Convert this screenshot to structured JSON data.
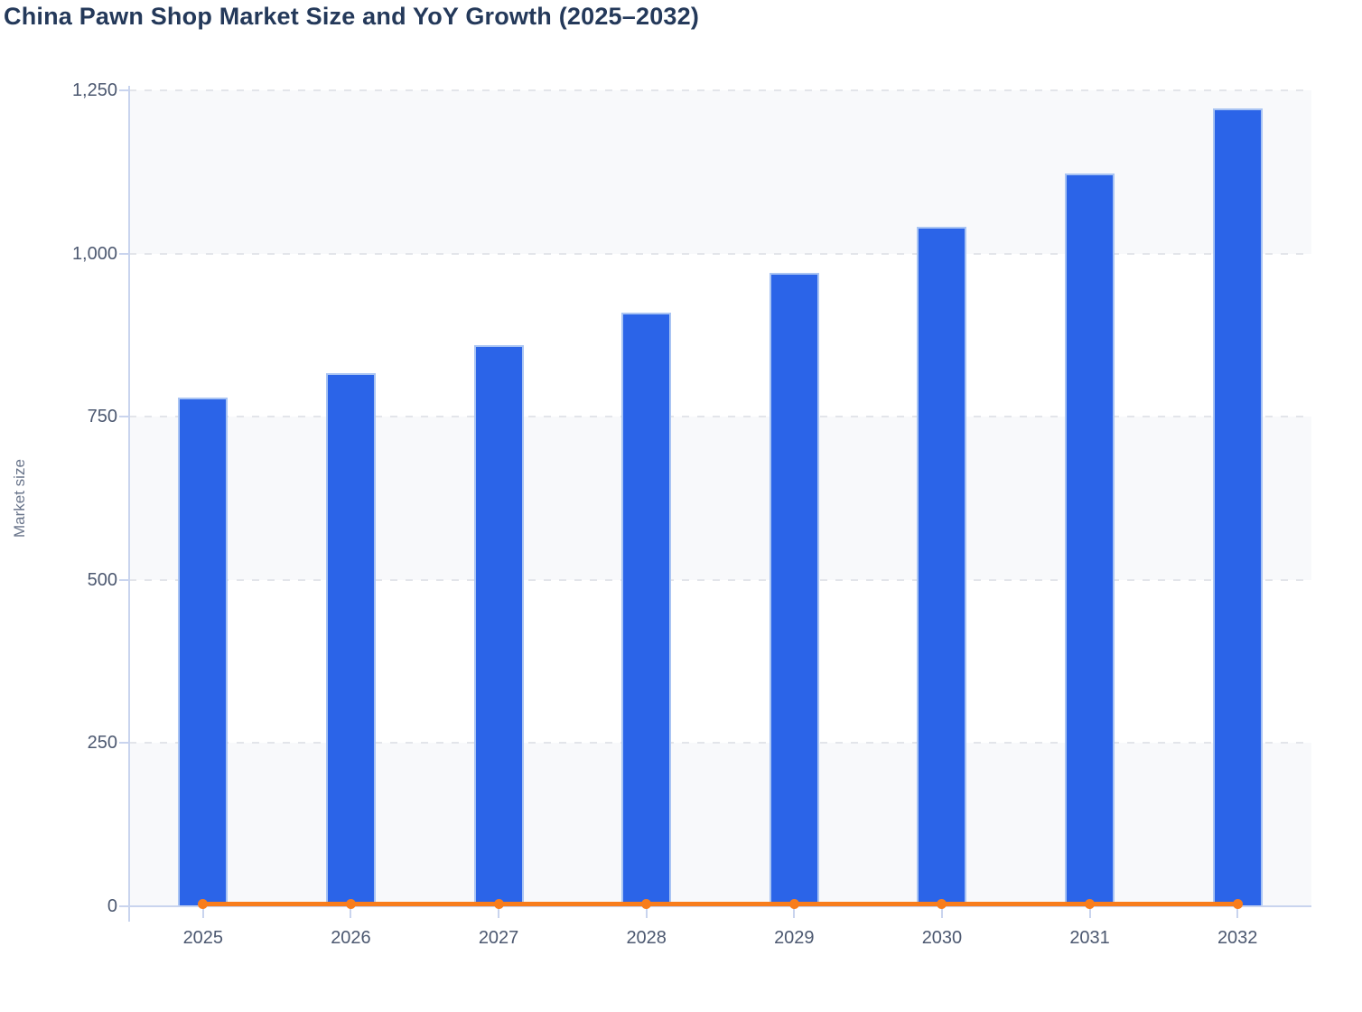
{
  "chart_data": {
    "type": "bar",
    "title": "China Pawn Shop Market Size and YoY Growth (2025–2032)",
    "xlabel": "",
    "ylabel": "Market size",
    "categories": [
      "2025",
      "2026",
      "2027",
      "2028",
      "2029",
      "2030",
      "2031",
      "2032"
    ],
    "series": [
      {
        "name": "Market size",
        "type": "bar",
        "color": "#2B64E8",
        "values": [
          780,
          817,
          859,
          910,
          970,
          1041,
          1123,
          1222
        ]
      },
      {
        "name": "YoY growth",
        "type": "line",
        "color": "#F87D1C",
        "values": [
          0,
          0,
          0,
          0,
          0,
          0,
          0,
          0
        ],
        "display_note": "Orange line with circular markers rendered flat at ≈0 on the shared market-size axis"
      }
    ],
    "ylim": [
      0,
      1250
    ],
    "yticks": [
      0,
      250,
      500,
      750,
      1000,
      1250
    ],
    "ytick_labels": [
      "0",
      "250",
      "500",
      "750",
      "1,000",
      "1,250"
    ],
    "grid": "horizontal dashed",
    "band_fill": "alternating horizontal bands #F8F9FB and #FFFFFF",
    "legend_position": "none",
    "colors": {
      "bar": "#2B64E8",
      "bar_stroke": "#A9C4F3",
      "line": "#F87D1C",
      "band": "#F8F9FB",
      "gridline": "#E3E5EA",
      "axis_line": "#C9D4EE",
      "tick_label": "#4C5870",
      "title": "#24395A",
      "axis_title": "#68748A"
    }
  }
}
